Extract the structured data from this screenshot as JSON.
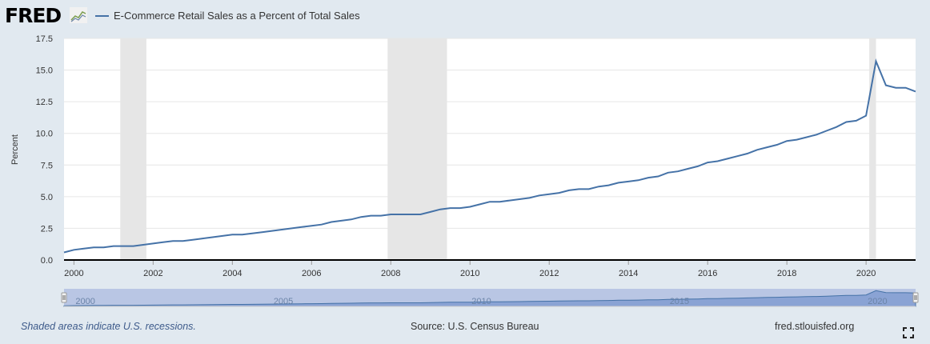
{
  "header": {
    "logo_text": "FRED",
    "series_label": "E-Commerce Retail Sales as a Percent of Total Sales"
  },
  "footer": {
    "recession_note": "Shaded areas indicate U.S. recessions.",
    "source": "Source: U.S. Census Bureau",
    "site": "fred.stlouisfed.org"
  },
  "colors": {
    "line": "#4572a7",
    "recession": "#e6e6e6",
    "plot_bg": "#ffffff",
    "page_bg": "#e1e9f0",
    "navigator_fill": "#b9c6e4"
  },
  "chart_data": {
    "type": "line",
    "title": "E-Commerce Retail Sales as a Percent of Total Sales",
    "xlabel": "",
    "ylabel": "Percent",
    "xlim": [
      1999.75,
      2021.25
    ],
    "ylim": [
      0,
      17.5
    ],
    "yticks": [
      0.0,
      2.5,
      5.0,
      7.5,
      10.0,
      12.5,
      15.0,
      17.5
    ],
    "ytick_labels": [
      "0.0",
      "2.5",
      "5.0",
      "7.5",
      "10.0",
      "12.5",
      "15.0",
      "17.5"
    ],
    "xticks": [
      2000,
      2002,
      2004,
      2006,
      2008,
      2010,
      2012,
      2014,
      2016,
      2018,
      2020
    ],
    "xtick_labels": [
      "2000",
      "2002",
      "2004",
      "2006",
      "2008",
      "2010",
      "2012",
      "2014",
      "2016",
      "2018",
      "2020"
    ],
    "grid": true,
    "recessions": [
      [
        2001.17,
        2001.83
      ],
      [
        2007.92,
        2009.42
      ],
      [
        2020.08,
        2020.25
      ]
    ],
    "navigator_labels": [
      "2000",
      "2005",
      "2010",
      "2015",
      "2020"
    ],
    "series": [
      {
        "name": "E-Commerce Retail Sales as a Percent of Total Sales",
        "x": [
          1999.75,
          2000.0,
          2000.25,
          2000.5,
          2000.75,
          2001.0,
          2001.25,
          2001.5,
          2001.75,
          2002.0,
          2002.25,
          2002.5,
          2002.75,
          2003.0,
          2003.25,
          2003.5,
          2003.75,
          2004.0,
          2004.25,
          2004.5,
          2004.75,
          2005.0,
          2005.25,
          2005.5,
          2005.75,
          2006.0,
          2006.25,
          2006.5,
          2006.75,
          2007.0,
          2007.25,
          2007.5,
          2007.75,
          2008.0,
          2008.25,
          2008.5,
          2008.75,
          2009.0,
          2009.25,
          2009.5,
          2009.75,
          2010.0,
          2010.25,
          2010.5,
          2010.75,
          2011.0,
          2011.25,
          2011.5,
          2011.75,
          2012.0,
          2012.25,
          2012.5,
          2012.75,
          2013.0,
          2013.25,
          2013.5,
          2013.75,
          2014.0,
          2014.25,
          2014.5,
          2014.75,
          2015.0,
          2015.25,
          2015.5,
          2015.75,
          2016.0,
          2016.25,
          2016.5,
          2016.75,
          2017.0,
          2017.25,
          2017.5,
          2017.75,
          2018.0,
          2018.25,
          2018.5,
          2018.75,
          2019.0,
          2019.25,
          2019.5,
          2019.75,
          2020.0,
          2020.25,
          2020.5,
          2020.75,
          2021.0,
          2021.25
        ],
        "y": [
          0.6,
          0.8,
          0.9,
          1.0,
          1.0,
          1.1,
          1.1,
          1.1,
          1.2,
          1.3,
          1.4,
          1.5,
          1.5,
          1.6,
          1.7,
          1.8,
          1.9,
          2.0,
          2.0,
          2.1,
          2.2,
          2.3,
          2.4,
          2.5,
          2.6,
          2.7,
          2.8,
          3.0,
          3.1,
          3.2,
          3.4,
          3.5,
          3.5,
          3.6,
          3.6,
          3.6,
          3.6,
          3.8,
          4.0,
          4.1,
          4.1,
          4.2,
          4.4,
          4.6,
          4.6,
          4.7,
          4.8,
          4.9,
          5.1,
          5.2,
          5.3,
          5.5,
          5.6,
          5.6,
          5.8,
          5.9,
          6.1,
          6.2,
          6.3,
          6.5,
          6.6,
          6.9,
          7.0,
          7.2,
          7.4,
          7.7,
          7.8,
          8.0,
          8.2,
          8.4,
          8.7,
          8.9,
          9.1,
          9.4,
          9.5,
          9.7,
          9.9,
          10.2,
          10.5,
          10.9,
          11.0,
          11.4,
          15.7,
          13.8,
          13.6,
          13.6,
          13.3
        ]
      }
    ]
  }
}
